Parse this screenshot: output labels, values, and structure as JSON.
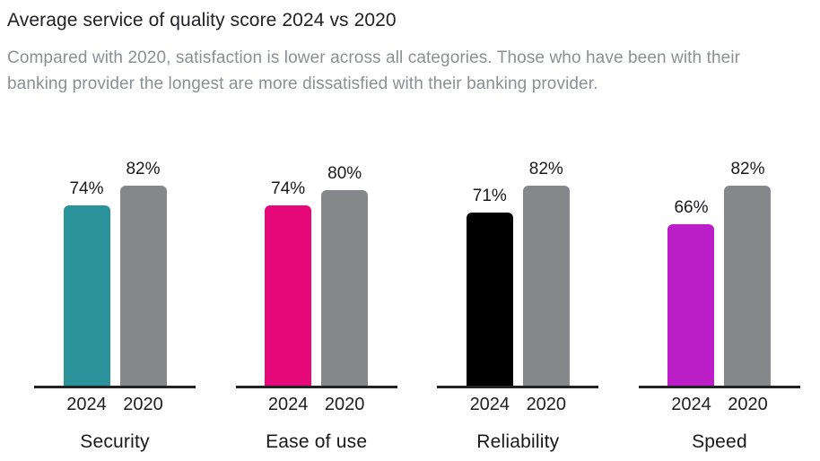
{
  "chart_data": {
    "type": "bar",
    "title": "Average service of quality score 2024 vs 2020",
    "subtitle": "Compared with 2020, satisfaction is lower across all categories. Those who have been with their banking provider the longest are more dissatisfied with their banking provider.",
    "categories": [
      "Security",
      "Ease of use",
      "Reliability",
      "Speed"
    ],
    "series": [
      {
        "name": "2024",
        "values": [
          74,
          74,
          71,
          66
        ],
        "bar_colors": [
          "#2A9399",
          "#E7087A",
          "#000000",
          "#BB1EC6"
        ]
      },
      {
        "name": "2020",
        "values": [
          82,
          80,
          82,
          82
        ],
        "bar_colors": [
          "#85878B",
          "#85878B",
          "#85878B",
          "#85878B"
        ]
      }
    ],
    "value_suffix": "%",
    "ylim": [
      0,
      100
    ],
    "grid": false,
    "legend_position": "none",
    "baseline_color": "#202224",
    "title_color": "#202227",
    "subtitle_color": "#8A9096",
    "value_label_color": "#17191B"
  }
}
